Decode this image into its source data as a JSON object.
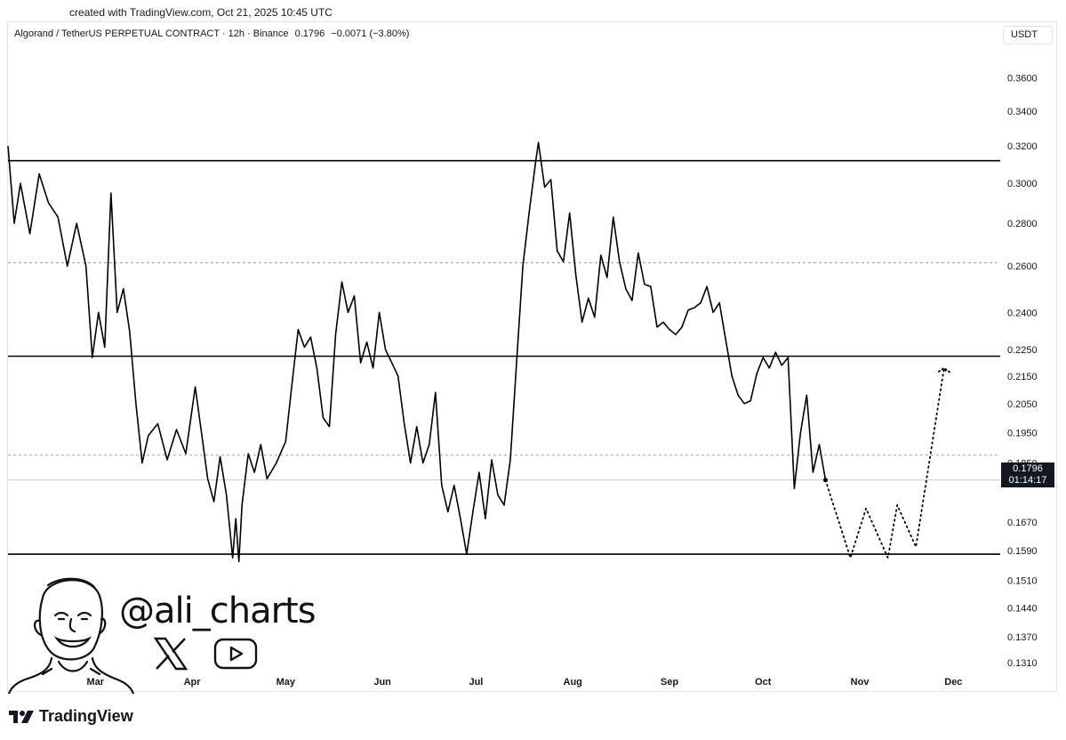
{
  "attribution": "created with TradingView.com, Oct 21, 2025 10:45 UTC",
  "header": {
    "symbol": "Algorand / TetherUS PERPETUAL CONTRACT · 12h · Binance",
    "last": "0.1796",
    "change": "−0.0071 (−3.80%)"
  },
  "currency_label": "USDT",
  "price_tag": {
    "price": "0.1796",
    "countdown": "01:14:17"
  },
  "watermark": {
    "handle": "@ali_charts",
    "icons": [
      "x-logo-icon",
      "youtube-icon"
    ]
  },
  "brand": "TradingView",
  "colors": {
    "line": "#000000",
    "dashed": "#9e9e9e",
    "tag": "#131722",
    "grid": "#e0e3eb"
  },
  "chart_data": {
    "type": "line",
    "scale": "log",
    "ylim": [
      0.128,
      0.385
    ],
    "y_ticks": [
      "0.3600",
      "0.3400",
      "0.3200",
      "0.3000",
      "0.2800",
      "0.2600",
      "0.2400",
      "0.2250",
      "0.2150",
      "0.2050",
      "0.1950",
      "0.1850",
      "0.1670",
      "0.1590",
      "0.1510",
      "0.1440",
      "0.1370",
      "0.1310"
    ],
    "x_ticks": [
      "Mar",
      "Apr",
      "May",
      "Jun",
      "Jul",
      "Aug",
      "Sep",
      "Oct",
      "Nov",
      "Dec"
    ],
    "x_tick_dates": [
      "2025-03-01",
      "2025-04-01",
      "2025-05-01",
      "2025-06-01",
      "2025-07-01",
      "2025-08-01",
      "2025-09-01",
      "2025-10-01",
      "2025-11-01",
      "2025-12-01"
    ],
    "xlim": [
      "2025-02-01",
      "2025-12-16"
    ],
    "horizontal_levels": [
      {
        "price": 0.312,
        "style": "solid"
      },
      {
        "price": 0.2615,
        "style": "dashed"
      },
      {
        "price": 0.2225,
        "style": "solid"
      },
      {
        "price": 0.1875,
        "style": "dashed"
      },
      {
        "price": 0.158,
        "style": "solid"
      },
      {
        "price": 0.1796,
        "style": "thin"
      }
    ],
    "series": [
      {
        "style": "solid",
        "points": [
          [
            "2025-02-01",
            0.32
          ],
          [
            "2025-02-03",
            0.28
          ],
          [
            "2025-02-05",
            0.3
          ],
          [
            "2025-02-08",
            0.275
          ],
          [
            "2025-02-11",
            0.305
          ],
          [
            "2025-02-14",
            0.29
          ],
          [
            "2025-02-17",
            0.283
          ],
          [
            "2025-02-20",
            0.26
          ],
          [
            "2025-02-23",
            0.28
          ],
          [
            "2025-02-26",
            0.26
          ],
          [
            "2025-02-28",
            0.222
          ],
          [
            "2025-03-02",
            0.24
          ],
          [
            "2025-03-04",
            0.226
          ],
          [
            "2025-03-06",
            0.295
          ],
          [
            "2025-03-08",
            0.24
          ],
          [
            "2025-03-10",
            0.25
          ],
          [
            "2025-03-12",
            0.232
          ],
          [
            "2025-03-14",
            0.205
          ],
          [
            "2025-03-16",
            0.185
          ],
          [
            "2025-03-18",
            0.194
          ],
          [
            "2025-03-21",
            0.198
          ],
          [
            "2025-03-24",
            0.186
          ],
          [
            "2025-03-27",
            0.196
          ],
          [
            "2025-03-30",
            0.188
          ],
          [
            "2025-04-02",
            0.211
          ],
          [
            "2025-04-04",
            0.195
          ],
          [
            "2025-04-06",
            0.18
          ],
          [
            "2025-04-08",
            0.173
          ],
          [
            "2025-04-10",
            0.187
          ],
          [
            "2025-04-12",
            0.175
          ],
          [
            "2025-04-14",
            0.157
          ],
          [
            "2025-04-15",
            0.168
          ],
          [
            "2025-04-16",
            0.156
          ],
          [
            "2025-04-17",
            0.172
          ],
          [
            "2025-04-19",
            0.188
          ],
          [
            "2025-04-21",
            0.182
          ],
          [
            "2025-04-23",
            0.191
          ],
          [
            "2025-04-25",
            0.18
          ],
          [
            "2025-04-28",
            0.185
          ],
          [
            "2025-05-01",
            0.192
          ],
          [
            "2025-05-03",
            0.212
          ],
          [
            "2025-05-05",
            0.233
          ],
          [
            "2025-05-07",
            0.226
          ],
          [
            "2025-05-09",
            0.23
          ],
          [
            "2025-05-11",
            0.218
          ],
          [
            "2025-05-13",
            0.2
          ],
          [
            "2025-05-15",
            0.197
          ],
          [
            "2025-05-17",
            0.231
          ],
          [
            "2025-05-19",
            0.253
          ],
          [
            "2025-05-21",
            0.24
          ],
          [
            "2025-05-23",
            0.247
          ],
          [
            "2025-05-25",
            0.22
          ],
          [
            "2025-05-27",
            0.228
          ],
          [
            "2025-05-29",
            0.218
          ],
          [
            "2025-05-31",
            0.24
          ],
          [
            "2025-06-02",
            0.225
          ],
          [
            "2025-06-04",
            0.22
          ],
          [
            "2025-06-06",
            0.215
          ],
          [
            "2025-06-08",
            0.198
          ],
          [
            "2025-06-10",
            0.185
          ],
          [
            "2025-06-12",
            0.197
          ],
          [
            "2025-06-14",
            0.185
          ],
          [
            "2025-06-16",
            0.191
          ],
          [
            "2025-06-18",
            0.209
          ],
          [
            "2025-06-20",
            0.178
          ],
          [
            "2025-06-22",
            0.17
          ],
          [
            "2025-06-24",
            0.178
          ],
          [
            "2025-06-26",
            0.168
          ],
          [
            "2025-06-28",
            0.158
          ],
          [
            "2025-06-30",
            0.17
          ],
          [
            "2025-07-02",
            0.182
          ],
          [
            "2025-07-04",
            0.168
          ],
          [
            "2025-07-06",
            0.186
          ],
          [
            "2025-07-08",
            0.175
          ],
          [
            "2025-07-10",
            0.172
          ],
          [
            "2025-07-12",
            0.186
          ],
          [
            "2025-07-14",
            0.22
          ],
          [
            "2025-07-16",
            0.26
          ],
          [
            "2025-07-18",
            0.285
          ],
          [
            "2025-07-20",
            0.31
          ],
          [
            "2025-07-21",
            0.322
          ],
          [
            "2025-07-23",
            0.298
          ],
          [
            "2025-07-25",
            0.302
          ],
          [
            "2025-07-27",
            0.267
          ],
          [
            "2025-07-29",
            0.262
          ],
          [
            "2025-07-31",
            0.285
          ],
          [
            "2025-08-02",
            0.256
          ],
          [
            "2025-08-04",
            0.236
          ],
          [
            "2025-08-06",
            0.246
          ],
          [
            "2025-08-08",
            0.238
          ],
          [
            "2025-08-10",
            0.265
          ],
          [
            "2025-08-12",
            0.255
          ],
          [
            "2025-08-14",
            0.283
          ],
          [
            "2025-08-16",
            0.262
          ],
          [
            "2025-08-18",
            0.25
          ],
          [
            "2025-08-20",
            0.245
          ],
          [
            "2025-08-22",
            0.266
          ],
          [
            "2025-08-24",
            0.252
          ],
          [
            "2025-08-26",
            0.251
          ],
          [
            "2025-08-28",
            0.234
          ],
          [
            "2025-08-30",
            0.236
          ],
          [
            "2025-09-01",
            0.233
          ],
          [
            "2025-09-03",
            0.231
          ],
          [
            "2025-09-05",
            0.234
          ],
          [
            "2025-09-07",
            0.241
          ],
          [
            "2025-09-09",
            0.242
          ],
          [
            "2025-09-11",
            0.244
          ],
          [
            "2025-09-13",
            0.251
          ],
          [
            "2025-09-15",
            0.24
          ],
          [
            "2025-09-17",
            0.244
          ],
          [
            "2025-09-19",
            0.229
          ],
          [
            "2025-09-21",
            0.215
          ],
          [
            "2025-09-23",
            0.208
          ],
          [
            "2025-09-25",
            0.205
          ],
          [
            "2025-09-27",
            0.206
          ],
          [
            "2025-09-29",
            0.216
          ],
          [
            "2025-10-01",
            0.222
          ],
          [
            "2025-10-03",
            0.218
          ],
          [
            "2025-10-05",
            0.224
          ],
          [
            "2025-10-07",
            0.219
          ],
          [
            "2025-10-09",
            0.222
          ],
          [
            "2025-10-11",
            0.177
          ],
          [
            "2025-10-13",
            0.195
          ],
          [
            "2025-10-15",
            0.208
          ],
          [
            "2025-10-17",
            0.182
          ],
          [
            "2025-10-19",
            0.191
          ],
          [
            "2025-10-21",
            0.1796
          ]
        ]
      },
      {
        "style": "dotted",
        "points": [
          [
            "2025-10-21",
            0.1796
          ],
          [
            "2025-10-29",
            0.157
          ],
          [
            "2025-11-03",
            0.171
          ],
          [
            "2025-11-10",
            0.157
          ],
          [
            "2025-11-13",
            0.172
          ],
          [
            "2025-11-19",
            0.16
          ],
          [
            "2025-11-28",
            0.218
          ],
          [
            "2025-11-29",
            0.216
          ]
        ]
      }
    ]
  }
}
